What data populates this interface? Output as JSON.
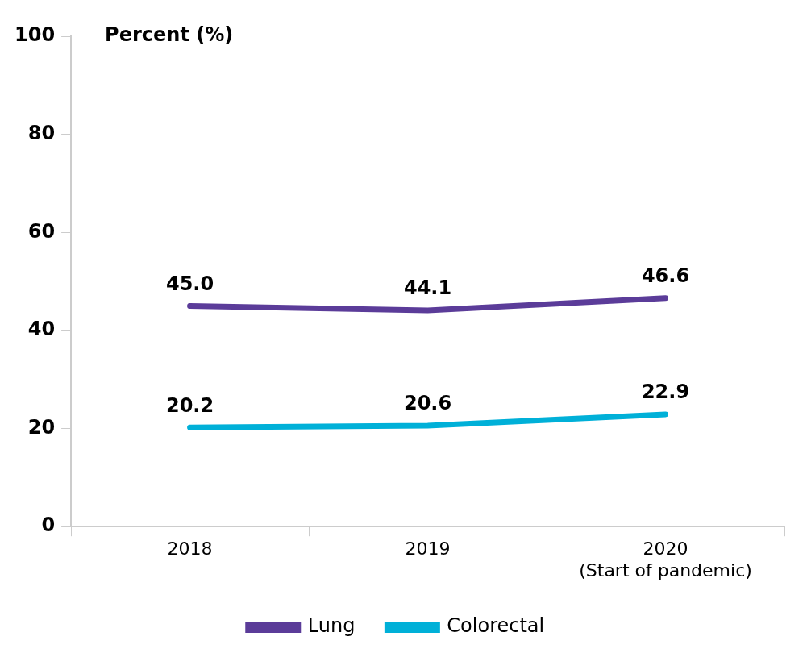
{
  "chart_data": {
    "type": "line",
    "y_label": "Percent (%)",
    "categories": [
      "2018",
      "2019",
      "2020\n(Start of pandemic)"
    ],
    "series": [
      {
        "name": "Lung",
        "color": "#5b3c99",
        "values": [
          45.0,
          44.1,
          46.6
        ],
        "value_labels": [
          "45.0",
          "44.1",
          "46.6"
        ]
      },
      {
        "name": "Colorectal",
        "color": "#00b0d8",
        "values": [
          20.2,
          20.6,
          22.9
        ],
        "value_labels": [
          "20.2",
          "20.6",
          "22.9"
        ]
      }
    ],
    "ylim": [
      0,
      100
    ],
    "yticks": [
      0,
      20,
      40,
      60,
      80,
      100
    ],
    "grid": false,
    "legend": "bottom",
    "data_labels": true
  }
}
